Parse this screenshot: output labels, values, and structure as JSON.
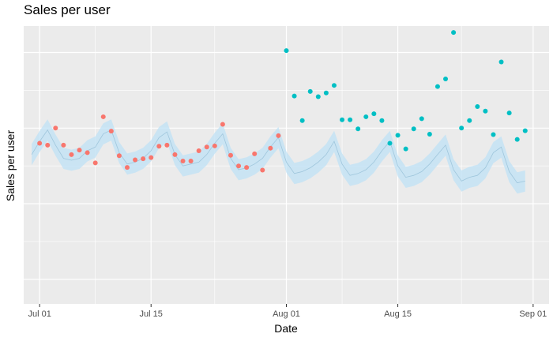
{
  "chart_data": {
    "type": "scatter",
    "title": "Sales per user",
    "xlabel": "Date",
    "ylabel": "Sales per user",
    "x_ticks": [
      "Jul 01",
      "Jul 15",
      "Aug 01",
      "Aug 15",
      "Sep 01"
    ],
    "x_range": [
      "2022-06-29",
      "2022-09-03"
    ],
    "y_range": [
      -3.65,
      3.7
    ],
    "y_tick_labels_shown": false,
    "grid": true,
    "legend": "none",
    "colors": {
      "panel": "#ebebeb",
      "grid": "#ffffff",
      "actual": "#f8766d",
      "forecast": "#00bfc4",
      "ribbon": "#bfe2f5",
      "fit_line": "#9fc6dc"
    },
    "series": [
      {
        "role": "actual",
        "x": [
          "2022-07-01",
          "2022-07-02",
          "2022-07-03",
          "2022-07-04",
          "2022-07-05",
          "2022-07-06",
          "2022-07-07",
          "2022-07-08",
          "2022-07-09",
          "2022-07-10",
          "2022-07-11",
          "2022-07-12",
          "2022-07-13",
          "2022-07-14",
          "2022-07-15",
          "2022-07-16",
          "2022-07-17",
          "2022-07-18",
          "2022-07-19",
          "2022-07-20",
          "2022-07-21",
          "2022-07-22",
          "2022-07-23",
          "2022-07-24",
          "2022-07-25",
          "2022-07-26",
          "2022-07-27",
          "2022-07-28",
          "2022-07-29",
          "2022-07-30",
          "2022-07-31"
        ],
        "y": [
          0.6,
          0.55,
          1.0,
          0.55,
          0.3,
          0.42,
          0.35,
          0.08,
          1.3,
          0.92,
          0.27,
          -0.04,
          0.16,
          0.19,
          0.22,
          0.52,
          0.55,
          0.3,
          0.13,
          0.13,
          0.4,
          0.5,
          0.53,
          1.1,
          0.28,
          0.0,
          -0.04,
          0.32,
          -0.11,
          0.47,
          0.8
        ]
      },
      {
        "role": "forecast",
        "x": [
          "2022-08-01",
          "2022-08-02",
          "2022-08-03",
          "2022-08-04",
          "2022-08-05",
          "2022-08-06",
          "2022-08-07",
          "2022-08-08",
          "2022-08-09",
          "2022-08-10",
          "2022-08-11",
          "2022-08-12",
          "2022-08-13",
          "2022-08-14",
          "2022-08-15",
          "2022-08-16",
          "2022-08-17",
          "2022-08-18",
          "2022-08-19",
          "2022-08-20",
          "2022-08-21",
          "2022-08-22",
          "2022-08-23",
          "2022-08-24",
          "2022-08-25",
          "2022-08-26",
          "2022-08-27",
          "2022-08-28",
          "2022-08-29",
          "2022-08-30",
          "2022-08-31"
        ],
        "y": [
          3.05,
          1.85,
          1.2,
          1.97,
          1.83,
          1.93,
          2.13,
          1.22,
          1.22,
          0.98,
          1.3,
          1.38,
          1.2,
          0.6,
          0.81,
          0.45,
          0.98,
          1.25,
          0.84,
          2.1,
          2.3,
          3.53,
          1.0,
          1.2,
          1.57,
          1.45,
          0.83,
          2.75,
          1.4,
          0.7,
          0.93
        ]
      },
      {
        "role": "fit",
        "x": [
          "2022-06-30",
          "2022-07-01",
          "2022-07-02",
          "2022-07-03",
          "2022-07-04",
          "2022-07-05",
          "2022-07-06",
          "2022-07-07",
          "2022-07-08",
          "2022-07-09",
          "2022-07-10",
          "2022-07-11",
          "2022-07-12",
          "2022-07-13",
          "2022-07-14",
          "2022-07-15",
          "2022-07-16",
          "2022-07-17",
          "2022-07-18",
          "2022-07-19",
          "2022-07-20",
          "2022-07-21",
          "2022-07-22",
          "2022-07-23",
          "2022-07-24",
          "2022-07-25",
          "2022-07-26",
          "2022-07-27",
          "2022-07-28",
          "2022-07-29",
          "2022-07-30",
          "2022-07-31",
          "2022-08-01",
          "2022-08-02",
          "2022-08-03",
          "2022-08-04",
          "2022-08-05",
          "2022-08-06",
          "2022-08-07",
          "2022-08-08",
          "2022-08-09",
          "2022-08-10",
          "2022-08-11",
          "2022-08-12",
          "2022-08-13",
          "2022-08-14",
          "2022-08-15",
          "2022-08-16",
          "2022-08-17",
          "2022-08-18",
          "2022-08-19",
          "2022-08-20",
          "2022-08-21",
          "2022-08-22",
          "2022-08-23",
          "2022-08-24",
          "2022-08-25",
          "2022-08-26",
          "2022-08-27",
          "2022-08-28",
          "2022-08-29",
          "2022-08-30",
          "2022-08-31"
        ],
        "y": [
          0.3,
          0.65,
          0.95,
          0.55,
          0.2,
          0.15,
          0.2,
          0.4,
          0.5,
          0.85,
          0.95,
          0.35,
          0.05,
          0.1,
          0.2,
          0.4,
          0.75,
          0.9,
          0.3,
          0.0,
          0.05,
          0.1,
          0.3,
          0.6,
          0.85,
          0.2,
          -0.1,
          -0.05,
          0.05,
          0.2,
          0.5,
          0.75,
          0.1,
          -0.2,
          -0.15,
          -0.05,
          0.1,
          0.3,
          0.65,
          0.05,
          -0.25,
          -0.2,
          -0.1,
          0.1,
          0.4,
          0.65,
          0.0,
          -0.3,
          -0.25,
          -0.15,
          0.05,
          0.3,
          0.55,
          -0.1,
          -0.4,
          -0.3,
          -0.25,
          -0.05,
          0.35,
          0.5,
          -0.15,
          -0.45,
          -0.4
        ],
        "band_halfwidth": 0.28
      }
    ]
  }
}
